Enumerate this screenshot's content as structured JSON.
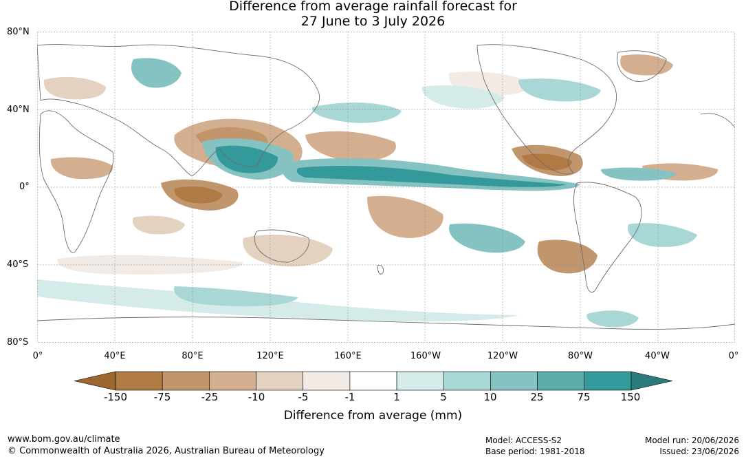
{
  "title": {
    "line1": "Difference from average rainfall forecast for",
    "line2": "27 June to 3 July 2026"
  },
  "map": {
    "lat_labels": [
      "80°N",
      "40°N",
      "0°",
      "40°S",
      "80°S"
    ],
    "lon_labels": [
      "0°",
      "40°E",
      "80°E",
      "120°E",
      "160°E",
      "160°W",
      "120°W",
      "80°W",
      "40°W",
      "0°"
    ],
    "ocean_color": "#ffffff",
    "coastline_color": "#6b6b6b",
    "grid": "dotted"
  },
  "colorbar": {
    "title": "Difference from average (mm)",
    "tick_labels": [
      "-150",
      "-75",
      "-25",
      "-10",
      "-5",
      "-1",
      "1",
      "5",
      "10",
      "25",
      "75",
      "150"
    ],
    "colors": [
      "#9c6630",
      "#b07a45",
      "#c2966c",
      "#d3ae8f",
      "#e4d2c1",
      "#f2ebe5",
      "#ffffff",
      "#d5ebea",
      "#a8d7d6",
      "#85c3c2",
      "#5bacab",
      "#33999a",
      "#2b7b7c"
    ]
  },
  "footer": {
    "website": "www.bom.gov.au/climate",
    "copyright": "© Commonwealth of Australia 2026, Australian Bureau of Meteorology",
    "model": "Model: ACCESS-S2",
    "base_period": "Base period: 1981-2018",
    "model_run": "Model run: 20/06/2026",
    "issued": "Issued: 23/06/2026"
  }
}
